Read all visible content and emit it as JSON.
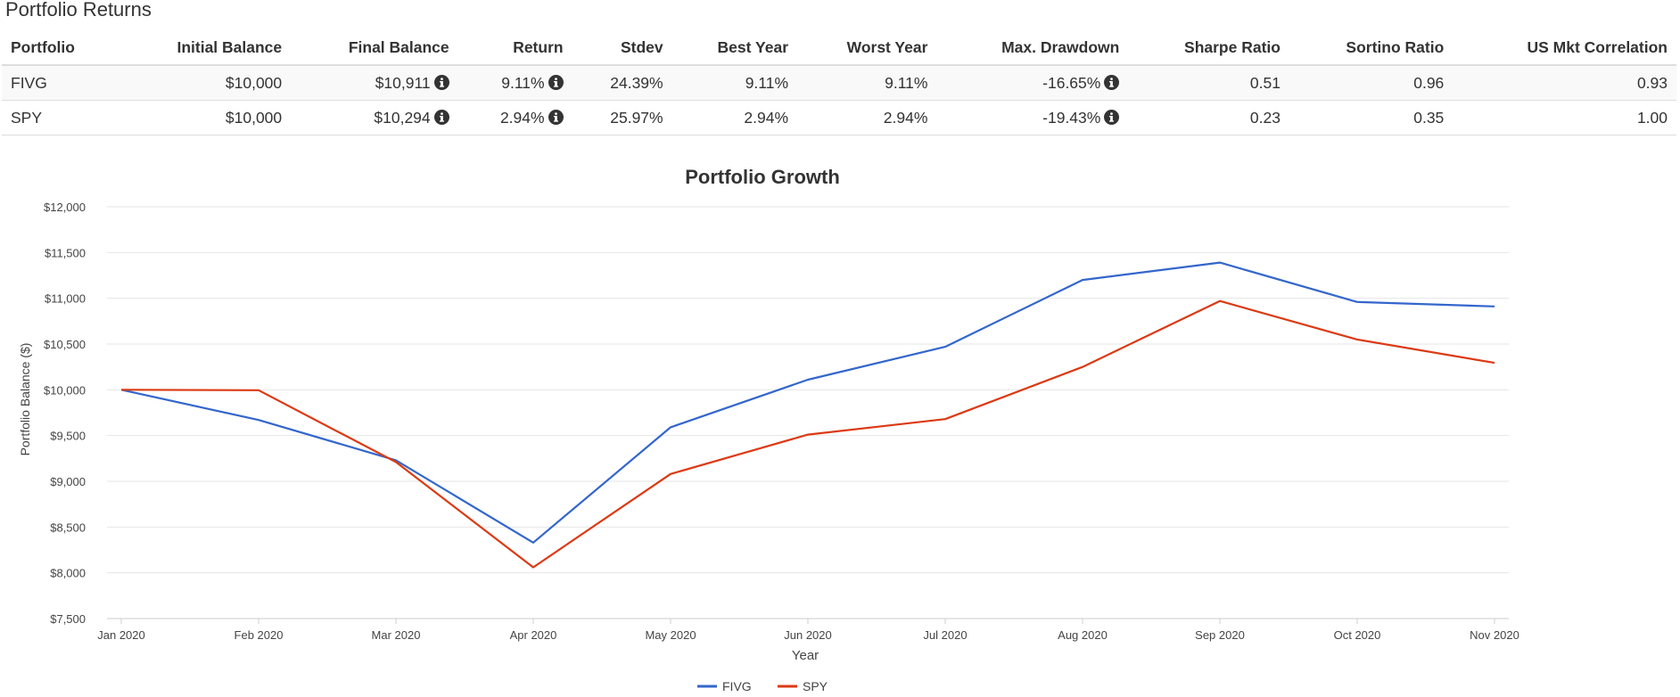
{
  "section_title": "Portfolio Returns",
  "table": {
    "headers": [
      "Portfolio",
      "Initial Balance",
      "Final Balance",
      "Return",
      "Stdev",
      "Best Year",
      "Worst Year",
      "Max. Drawdown",
      "Sharpe Ratio",
      "Sortino Ratio",
      "US Mkt Correlation"
    ],
    "rows": [
      {
        "portfolio": "FIVG",
        "initial": "$10,000",
        "final": "$10,911",
        "return": "9.11%",
        "stdev": "24.39%",
        "best": "9.11%",
        "worst": "9.11%",
        "drawdown": "-16.65%",
        "sharpe": "0.51",
        "sortino": "0.96",
        "correlation": "0.93"
      },
      {
        "portfolio": "SPY",
        "initial": "$10,000",
        "final": "$10,294",
        "return": "2.94%",
        "stdev": "25.97%",
        "best": "2.94%",
        "worst": "2.94%",
        "drawdown": "-19.43%",
        "sharpe": "0.23",
        "sortino": "0.35",
        "correlation": "1.00"
      }
    ]
  },
  "chart_data": {
    "type": "line",
    "title": "Portfolio Growth",
    "xlabel": "Year",
    "ylabel": "Portfolio Balance ($)",
    "categories": [
      "Jan 2020",
      "Feb 2020",
      "Mar 2020",
      "Apr 2020",
      "May 2020",
      "Jun 2020",
      "Jul 2020",
      "Aug 2020",
      "Sep 2020",
      "Oct 2020",
      "Nov 2020"
    ],
    "ylim": [
      7500,
      12000
    ],
    "yticks": [
      7500,
      8000,
      8500,
      9000,
      9500,
      10000,
      10500,
      11000,
      11500,
      12000
    ],
    "ytick_labels": [
      "$7,500",
      "$8,000",
      "$8,500",
      "$9,000",
      "$9,500",
      "$10,000",
      "$10,500",
      "$11,000",
      "$11,500",
      "$12,000"
    ],
    "grid": true,
    "legend_position": "bottom-center",
    "series": [
      {
        "name": "FIVG",
        "color": "#3366cc",
        "values": [
          10000,
          9670,
          9230,
          8330,
          9590,
          10110,
          10470,
          11200,
          11390,
          10960,
          10911
        ]
      },
      {
        "name": "SPY",
        "color": "#dc3912",
        "values": [
          10000,
          9995,
          9210,
          8060,
          9080,
          9510,
          9680,
          10250,
          10970,
          10550,
          10294
        ]
      }
    ]
  }
}
